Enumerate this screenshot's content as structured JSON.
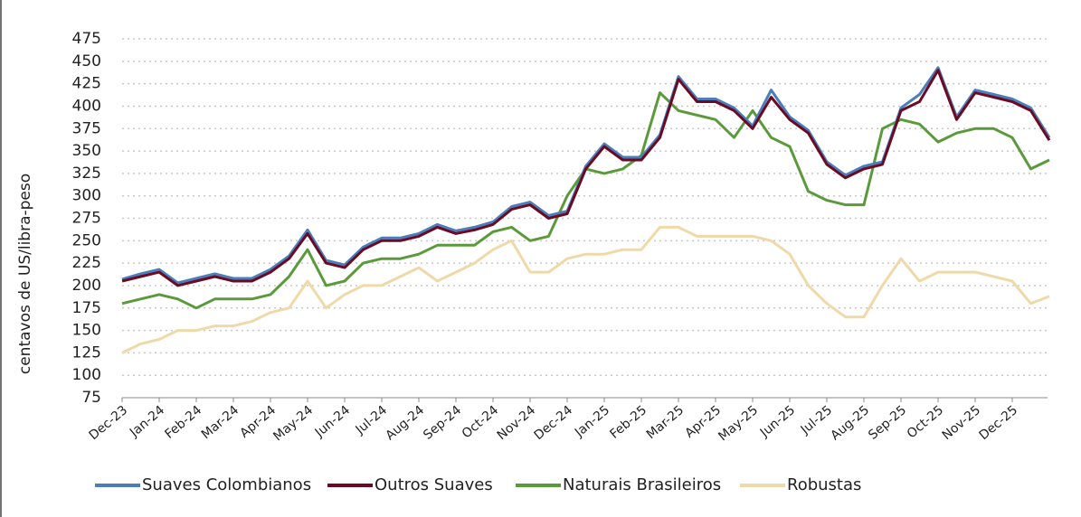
{
  "chart_data": {
    "type": "line",
    "y_label": "centavos de US/libra-peso",
    "categories": [
      "Dec-23",
      null,
      "Jan-24",
      null,
      "Feb-24",
      null,
      "Mar-24",
      null,
      "Apr-24",
      null,
      "May-24",
      null,
      "Jun-24",
      null,
      "Jul-24",
      null,
      "Aug-24",
      null,
      "Sep-24",
      null,
      "Oct-24",
      null,
      "Nov-24",
      null,
      "Dec-24",
      null,
      "Jan-25",
      null,
      "Feb-25",
      null,
      "Mar-25",
      null,
      "Apr-25",
      null,
      "May-25",
      null,
      "Jun-25",
      null,
      "Jul-25",
      null,
      "Aug-25",
      null,
      "Sep-25",
      null,
      "Oct-25",
      null,
      "Nov-25",
      null,
      "Dec-25",
      null,
      null
    ],
    "series": [
      {
        "name": "Suaves Colombianos",
        "color": "#4a7ebb",
        "values": [
          207,
          213,
          218,
          203,
          208,
          213,
          208,
          208,
          218,
          233,
          262,
          228,
          223,
          243,
          253,
          253,
          258,
          268,
          261,
          265,
          271,
          288,
          293,
          278,
          283,
          333,
          358,
          343,
          343,
          368,
          433,
          408,
          408,
          398,
          378,
          418,
          388,
          373,
          338,
          323,
          333,
          338,
          398,
          413,
          443,
          388,
          418,
          413,
          408,
          398,
          365
        ]
      },
      {
        "name": "Outros Suaves",
        "color": "#6b0a22",
        "values": [
          205,
          210,
          215,
          200,
          205,
          210,
          205,
          205,
          215,
          230,
          258,
          225,
          220,
          240,
          250,
          250,
          255,
          265,
          258,
          262,
          268,
          285,
          290,
          275,
          280,
          330,
          355,
          340,
          340,
          365,
          430,
          405,
          405,
          395,
          375,
          410,
          385,
          370,
          335,
          320,
          330,
          335,
          395,
          405,
          440,
          385,
          415,
          410,
          405,
          395,
          362
        ]
      },
      {
        "name": "Naturais Brasileiros",
        "color": "#5b9a3a",
        "values": [
          180,
          185,
          190,
          185,
          175,
          185,
          185,
          185,
          190,
          210,
          240,
          200,
          205,
          225,
          230,
          230,
          235,
          245,
          245,
          245,
          260,
          265,
          250,
          255,
          300,
          330,
          325,
          330,
          345,
          415,
          395,
          390,
          385,
          365,
          395,
          365,
          355,
          305,
          295,
          290,
          290,
          375,
          385,
          380,
          360,
          370,
          375,
          375,
          365,
          330,
          340
        ]
      },
      {
        "name": "Robustas",
        "color": "#efd9a8",
        "values": [
          125,
          135,
          140,
          150,
          150,
          155,
          155,
          160,
          170,
          175,
          205,
          175,
          190,
          200,
          200,
          210,
          220,
          205,
          215,
          225,
          240,
          250,
          215,
          215,
          230,
          235,
          235,
          240,
          240,
          265,
          265,
          255,
          255,
          255,
          255,
          250,
          235,
          200,
          180,
          165,
          165,
          200,
          230,
          205,
          215,
          215,
          215,
          210,
          205,
          180,
          188
        ]
      }
    ],
    "ylim": [
      75,
      475
    ],
    "yticks": [
      75,
      100,
      125,
      150,
      175,
      200,
      225,
      250,
      275,
      300,
      325,
      350,
      375,
      400,
      425,
      450,
      475
    ],
    "grid": true,
    "legend": "bottom"
  }
}
